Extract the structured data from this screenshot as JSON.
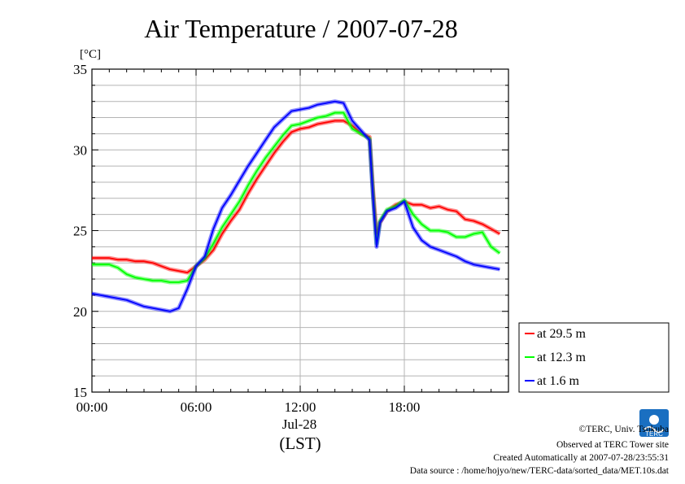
{
  "chart_data": {
    "type": "line",
    "title": "Air Temperature / 2007-07-28",
    "ylabel": "[°C]",
    "xlabel": "(LST)",
    "x_date_label": "Jul-28",
    "ylim": [
      15,
      35
    ],
    "yticks": [
      15,
      20,
      25,
      30,
      35
    ],
    "xlim_hours": [
      0,
      24
    ],
    "xtick_labels": [
      "00:00",
      "06:00",
      "12:00",
      "18:00"
    ],
    "xtick_hours": [
      0,
      6,
      12,
      18
    ],
    "grid": true,
    "legend_position": "right",
    "x_hours": [
      0,
      0.5,
      1,
      1.5,
      2,
      2.5,
      3,
      3.5,
      4,
      4.5,
      5,
      5.5,
      6,
      6.5,
      7,
      7.5,
      8,
      8.5,
      9,
      9.5,
      10,
      10.5,
      11,
      11.5,
      12,
      12.5,
      13,
      13.5,
      14,
      14.5,
      15,
      15.5,
      16,
      16.2,
      16.4,
      16.6,
      17,
      17.5,
      18,
      18.5,
      19,
      19.5,
      20,
      20.5,
      21,
      21.5,
      22,
      22.5,
      23,
      23.5
    ],
    "series": [
      {
        "name": "at 29.5 m",
        "color": "#ff0000",
        "values": [
          23.3,
          23.3,
          23.3,
          23.2,
          23.2,
          23.1,
          23.1,
          23.0,
          22.8,
          22.6,
          22.5,
          22.4,
          22.8,
          23.2,
          23.8,
          24.8,
          25.6,
          26.3,
          27.3,
          28.2,
          29.0,
          29.8,
          30.5,
          31.1,
          31.3,
          31.4,
          31.6,
          31.7,
          31.8,
          31.8,
          31.5,
          31.0,
          30.8,
          27.5,
          24.8,
          25.5,
          26.2,
          26.6,
          26.8,
          26.6,
          26.6,
          26.4,
          26.5,
          26.3,
          26.2,
          25.7,
          25.6,
          25.4,
          25.1,
          24.8
        ]
      },
      {
        "name": "at 12.3 m",
        "color": "#00ff00",
        "values": [
          22.9,
          22.9,
          22.9,
          22.7,
          22.3,
          22.1,
          22.0,
          21.9,
          21.9,
          21.8,
          21.8,
          21.9,
          22.8,
          23.3,
          24.2,
          25.2,
          26.0,
          26.8,
          27.8,
          28.7,
          29.5,
          30.2,
          30.9,
          31.5,
          31.6,
          31.8,
          32.0,
          32.1,
          32.3,
          32.3,
          31.3,
          31.0,
          30.7,
          27.2,
          24.2,
          25.6,
          26.3,
          26.5,
          26.9,
          26.0,
          25.4,
          25.0,
          25.0,
          24.9,
          24.6,
          24.6,
          24.8,
          24.9,
          24.0,
          23.6
        ]
      },
      {
        "name": "at 1.6 m",
        "color": "#0000ff",
        "values": [
          21.1,
          21.0,
          20.9,
          20.8,
          20.7,
          20.5,
          20.3,
          20.2,
          20.1,
          20.0,
          20.2,
          21.4,
          22.8,
          23.4,
          25.1,
          26.4,
          27.2,
          28.1,
          29.0,
          29.8,
          30.6,
          31.4,
          31.9,
          32.4,
          32.5,
          32.6,
          32.8,
          32.9,
          33.0,
          32.9,
          31.8,
          31.2,
          30.6,
          27.0,
          24.0,
          25.5,
          26.2,
          26.4,
          26.8,
          25.2,
          24.4,
          24.0,
          23.8,
          23.6,
          23.4,
          23.1,
          22.9,
          22.8,
          22.7,
          22.6
        ]
      }
    ]
  },
  "footer": {
    "copyright": "©TERC, Univ. Tsukuba",
    "observed": "Observed at TERC Tower site",
    "created": "Created Automatically at 2007-07-28/23:55:31",
    "source": "Data source : /home/hojyo/new/TERC-data/sorted_data/MET.10s.dat"
  },
  "logo": {
    "text": "TERC",
    "color": "#1a6fc1"
  }
}
